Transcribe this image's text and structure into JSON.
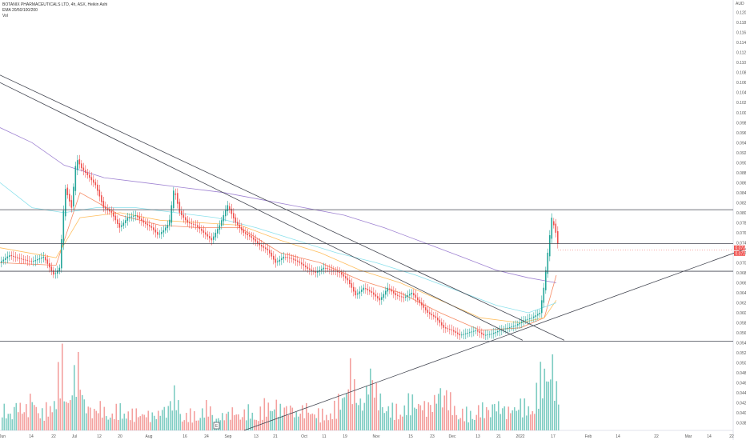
{
  "legend": {
    "title": "BOTANIX PHARMACEUTICALS LTD, 4h, ASX, Heikin Ashi",
    "ema": "EMA 20/50/100/200",
    "vol": "Vol"
  },
  "colors": {
    "up": "#26a69a",
    "down": "#ef5350",
    "vol_up": "#7fcdc3",
    "vol_down": "#f4a09e",
    "ema20": "#f57c51",
    "ema50": "#ffb74d",
    "ema100": "#80deea",
    "ema200": "#9575cd",
    "trendline": "#434651",
    "price_tag": "#ef5350"
  },
  "chart_data": {
    "type": "candlestick",
    "currency": "AUD",
    "ylim": [
      0.0365,
      0.1225
    ],
    "y_ticks": [
      "0.038",
      "0.040",
      "0.042",
      "0.044",
      "0.046",
      "0.048",
      "0.050",
      "0.052",
      "0.054",
      "0.056",
      "0.058",
      "0.060",
      "0.062",
      "0.064",
      "0.066",
      "0.068",
      "0.070",
      "0.072",
      "0.074",
      "0.076",
      "0.078",
      "0.080",
      "0.082",
      "0.084",
      "0.086",
      "0.088",
      "0.090",
      "0.092",
      "0.094",
      "0.096",
      "0.098",
      "0.100",
      "0.102",
      "0.104",
      "0.106",
      "0.108",
      "0.110",
      "0.112",
      "0.114",
      "0.116",
      "0.118",
      "0.120"
    ],
    "x_ticks": [
      "Jun",
      "14",
      "22",
      "Jul",
      "12",
      "20",
      "Aug",
      "16",
      "24",
      "Sep",
      "13",
      "21",
      "Oct",
      "11",
      "19",
      "Nov",
      "15",
      "23",
      "Dec",
      "13",
      "21",
      "2022",
      "17",
      "Feb",
      "14",
      "22",
      "Mar",
      "14",
      "22"
    ],
    "last_price": "0.0725",
    "price_tags": [
      "0.073",
      "0.072"
    ],
    "horizontal_levels": [
      0.0806,
      0.0738,
      0.0683,
      0.0543
    ],
    "price_path": [
      [
        0,
        0.07
      ],
      [
        12,
        0.0715
      ],
      [
        25,
        0.0708
      ],
      [
        40,
        0.0702
      ],
      [
        55,
        0.0712
      ],
      [
        68,
        0.0675
      ],
      [
        75,
        0.069
      ],
      [
        82,
        0.085
      ],
      [
        90,
        0.081
      ],
      [
        96,
        0.091
      ],
      [
        102,
        0.089
      ],
      [
        110,
        0.0875
      ],
      [
        120,
        0.0855
      ],
      [
        130,
        0.081
      ],
      [
        140,
        0.08
      ],
      [
        150,
        0.077
      ],
      [
        160,
        0.079
      ],
      [
        170,
        0.0795
      ],
      [
        180,
        0.078
      ],
      [
        190,
        0.077
      ],
      [
        198,
        0.0755
      ],
      [
        205,
        0.0765
      ],
      [
        212,
        0.078
      ],
      [
        218,
        0.085
      ],
      [
        225,
        0.08
      ],
      [
        235,
        0.078
      ],
      [
        245,
        0.0775
      ],
      [
        255,
        0.076
      ],
      [
        265,
        0.0745
      ],
      [
        275,
        0.0775
      ],
      [
        285,
        0.0815
      ],
      [
        295,
        0.078
      ],
      [
        305,
        0.076
      ],
      [
        315,
        0.075
      ],
      [
        325,
        0.0735
      ],
      [
        335,
        0.0725
      ],
      [
        345,
        0.07
      ],
      [
        355,
        0.0712
      ],
      [
        365,
        0.0708
      ],
      [
        375,
        0.07
      ],
      [
        385,
        0.0688
      ],
      [
        395,
        0.068
      ],
      [
        405,
        0.069
      ],
      [
        415,
        0.0685
      ],
      [
        425,
        0.068
      ],
      [
        435,
        0.0665
      ],
      [
        445,
        0.0635
      ],
      [
        455,
        0.065
      ],
      [
        465,
        0.064
      ],
      [
        475,
        0.0625
      ],
      [
        485,
        0.065
      ],
      [
        495,
        0.0635
      ],
      [
        505,
        0.063
      ],
      [
        515,
        0.064
      ],
      [
        525,
        0.062
      ],
      [
        535,
        0.06
      ],
      [
        545,
        0.059
      ],
      [
        555,
        0.057
      ],
      [
        565,
        0.0565
      ],
      [
        575,
        0.0555
      ],
      [
        585,
        0.056
      ],
      [
        595,
        0.0565
      ],
      [
        605,
        0.0555
      ],
      [
        615,
        0.0558
      ],
      [
        625,
        0.0565
      ],
      [
        635,
        0.057
      ],
      [
        645,
        0.0575
      ],
      [
        655,
        0.0585
      ],
      [
        665,
        0.059
      ],
      [
        675,
        0.06
      ],
      [
        680,
        0.065
      ],
      [
        685,
        0.072
      ],
      [
        690,
        0.079
      ],
      [
        695,
        0.076
      ],
      [
        699,
        0.0725
      ]
    ],
    "volume_path": [
      [
        0,
        0.3
      ],
      [
        10,
        0.2
      ],
      [
        20,
        0.35
      ],
      [
        30,
        0.25
      ],
      [
        40,
        0.45
      ],
      [
        50,
        0.2
      ],
      [
        60,
        0.3
      ],
      [
        70,
        0.55
      ],
      [
        76,
        0.9
      ],
      [
        82,
        0.4
      ],
      [
        90,
        0.6
      ],
      [
        96,
        0.85
      ],
      [
        105,
        0.35
      ],
      [
        115,
        0.25
      ],
      [
        125,
        0.3
      ],
      [
        135,
        0.2
      ],
      [
        145,
        0.25
      ],
      [
        155,
        0.3
      ],
      [
        165,
        0.2
      ],
      [
        175,
        0.25
      ],
      [
        185,
        0.2
      ],
      [
        195,
        0.2
      ],
      [
        205,
        0.3
      ],
      [
        212,
        0.35
      ],
      [
        218,
        0.45
      ],
      [
        228,
        0.2
      ],
      [
        240,
        0.2
      ],
      [
        250,
        0.25
      ],
      [
        260,
        0.3
      ],
      [
        270,
        0.15
      ],
      [
        280,
        0.2
      ],
      [
        290,
        0.25
      ],
      [
        300,
        0.2
      ],
      [
        310,
        0.25
      ],
      [
        320,
        0.2
      ],
      [
        330,
        0.3
      ],
      [
        340,
        0.4
      ],
      [
        350,
        0.25
      ],
      [
        360,
        0.35
      ],
      [
        370,
        0.2
      ],
      [
        380,
        0.3
      ],
      [
        390,
        0.25
      ],
      [
        400,
        0.2
      ],
      [
        410,
        0.25
      ],
      [
        420,
        0.3
      ],
      [
        430,
        0.55
      ],
      [
        437,
        0.75
      ],
      [
        445,
        0.4
      ],
      [
        455,
        0.35
      ],
      [
        460,
        0.85
      ],
      [
        470,
        0.45
      ],
      [
        480,
        0.35
      ],
      [
        490,
        0.25
      ],
      [
        500,
        0.3
      ],
      [
        510,
        0.35
      ],
      [
        520,
        0.4
      ],
      [
        530,
        0.3
      ],
      [
        540,
        0.35
      ],
      [
        550,
        0.55
      ],
      [
        558,
        0.45
      ],
      [
        565,
        0.3
      ],
      [
        575,
        0.25
      ],
      [
        585,
        0.2
      ],
      [
        595,
        0.3
      ],
      [
        605,
        0.25
      ],
      [
        615,
        0.35
      ],
      [
        625,
        0.3
      ],
      [
        635,
        0.25
      ],
      [
        645,
        0.35
      ],
      [
        655,
        0.3
      ],
      [
        665,
        0.35
      ],
      [
        672,
        0.55
      ],
      [
        678,
        0.75
      ],
      [
        684,
        0.95
      ],
      [
        690,
        0.8
      ],
      [
        695,
        0.45
      ]
    ],
    "ema20_path": [
      [
        0,
        0.07
      ],
      [
        70,
        0.0695
      ],
      [
        100,
        0.084
      ],
      [
        150,
        0.0795
      ],
      [
        200,
        0.0775
      ],
      [
        250,
        0.077
      ],
      [
        300,
        0.077
      ],
      [
        350,
        0.072
      ],
      [
        400,
        0.07
      ],
      [
        450,
        0.0665
      ],
      [
        500,
        0.064
      ],
      [
        550,
        0.06
      ],
      [
        600,
        0.0565
      ],
      [
        650,
        0.057
      ],
      [
        680,
        0.059
      ],
      [
        695,
        0.0675
      ]
    ],
    "ema50_path": [
      [
        0,
        0.073
      ],
      [
        70,
        0.071
      ],
      [
        100,
        0.079
      ],
      [
        150,
        0.08
      ],
      [
        200,
        0.0785
      ],
      [
        250,
        0.078
      ],
      [
        300,
        0.0775
      ],
      [
        350,
        0.0745
      ],
      [
        400,
        0.072
      ],
      [
        450,
        0.0685
      ],
      [
        500,
        0.066
      ],
      [
        550,
        0.0625
      ],
      [
        600,
        0.059
      ],
      [
        650,
        0.058
      ],
      [
        680,
        0.059
      ],
      [
        695,
        0.0625
      ]
    ],
    "ema100_path": [
      [
        0,
        0.086
      ],
      [
        40,
        0.081
      ],
      [
        80,
        0.08
      ],
      [
        120,
        0.081
      ],
      [
        170,
        0.081
      ],
      [
        220,
        0.08
      ],
      [
        270,
        0.079
      ],
      [
        320,
        0.077
      ],
      [
        370,
        0.0745
      ],
      [
        420,
        0.072
      ],
      [
        470,
        0.07
      ],
      [
        520,
        0.0675
      ],
      [
        570,
        0.0645
      ],
      [
        620,
        0.0615
      ],
      [
        660,
        0.06
      ],
      [
        695,
        0.062
      ]
    ],
    "ema200_path": [
      [
        0,
        0.097
      ],
      [
        40,
        0.094
      ],
      [
        80,
        0.0895
      ],
      [
        130,
        0.087
      ],
      [
        180,
        0.086
      ],
      [
        230,
        0.085
      ],
      [
        280,
        0.084
      ],
      [
        330,
        0.0825
      ],
      [
        380,
        0.081
      ],
      [
        430,
        0.0795
      ],
      [
        480,
        0.077
      ],
      [
        530,
        0.074
      ],
      [
        580,
        0.071
      ],
      [
        620,
        0.0685
      ],
      [
        660,
        0.067
      ],
      [
        695,
        0.066
      ]
    ],
    "trendlines": [
      [
        [
          0,
          0.1075
        ],
        [
          705,
          0.0545
        ]
      ],
      [
        [
          0,
          0.106
        ],
        [
          653,
          0.0545
        ]
      ],
      [
        [
          305,
          0.0365
        ],
        [
          932,
          0.0728
        ]
      ]
    ],
    "marker_label": "E"
  }
}
